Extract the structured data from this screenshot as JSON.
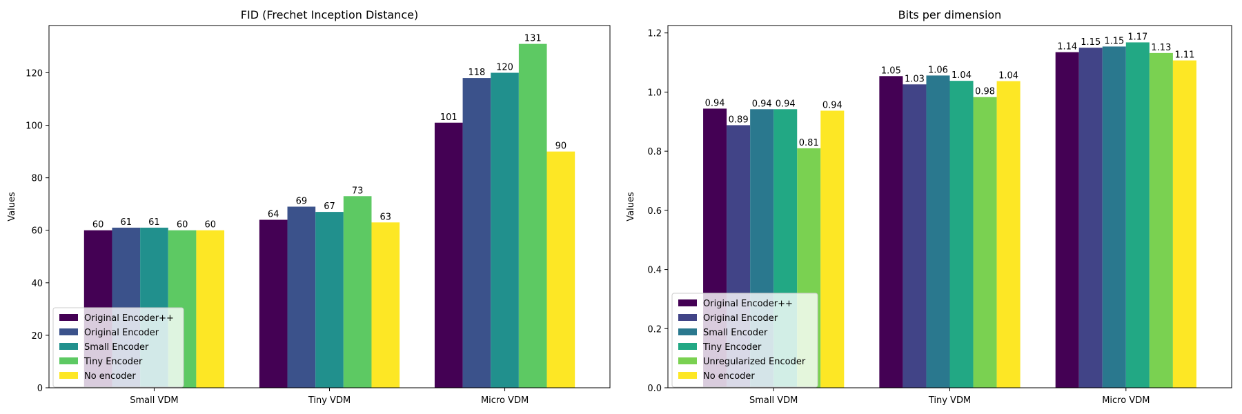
{
  "chart_data": [
    {
      "type": "bar",
      "title": "FID (Frechet Inception Distance)",
      "xlabel": "",
      "ylabel": "Values",
      "categories": [
        "Small VDM",
        "Tiny VDM",
        "Micro VDM"
      ],
      "ylim": [
        0,
        138
      ],
      "yticks": [
        0,
        20,
        40,
        60,
        80,
        100,
        120
      ],
      "grid": false,
      "legend_position": "lower-left",
      "series": [
        {
          "name": "Original Encoder++",
          "color": "#440154",
          "values": [
            60,
            64,
            101
          ]
        },
        {
          "name": "Original Encoder",
          "color": "#3b528b",
          "values": [
            61,
            69,
            118
          ]
        },
        {
          "name": "Small Encoder",
          "color": "#21908d",
          "values": [
            61,
            67,
            120
          ]
        },
        {
          "name": "Tiny Encoder",
          "color": "#5dc963",
          "values": [
            60,
            73,
            131
          ]
        },
        {
          "name": "No encoder",
          "color": "#fde725",
          "values": [
            60,
            63,
            90
          ]
        }
      ],
      "value_labels": [
        [
          "60",
          "64",
          "101"
        ],
        [
          "61",
          "69",
          "118"
        ],
        [
          "61",
          "67",
          "120"
        ],
        [
          "60",
          "73",
          "131"
        ],
        [
          "60",
          "63",
          "90"
        ]
      ]
    },
    {
      "type": "bar",
      "title": "Bits per dimension",
      "xlabel": "",
      "ylabel": "Values",
      "categories": [
        "Small VDM",
        "Tiny VDM",
        "Micro VDM"
      ],
      "ylim": [
        0,
        1.225
      ],
      "yticks": [
        0.0,
        0.2,
        0.4,
        0.6,
        0.8,
        1.0,
        1.2
      ],
      "grid": false,
      "legend_position": "lower-left",
      "series": [
        {
          "name": "Original Encoder++",
          "color": "#440154",
          "values": [
            0.944,
            1.054,
            1.135
          ]
        },
        {
          "name": "Original Encoder",
          "color": "#414487",
          "values": [
            0.888,
            1.026,
            1.15
          ]
        },
        {
          "name": "Small Encoder",
          "color": "#2a788e",
          "values": [
            0.942,
            1.056,
            1.154
          ]
        },
        {
          "name": "Tiny Encoder",
          "color": "#22a884",
          "values": [
            0.942,
            1.038,
            1.168
          ]
        },
        {
          "name": "Unregularized Encoder",
          "color": "#7ad151",
          "values": [
            0.81,
            0.983,
            1.132
          ]
        },
        {
          "name": "No encoder",
          "color": "#fde725",
          "values": [
            0.937,
            1.037,
            1.107
          ]
        }
      ],
      "value_labels": [
        [
          "0.94",
          "1.05",
          "1.14"
        ],
        [
          "0.89",
          "1.03",
          "1.15"
        ],
        [
          "0.94",
          "1.06",
          "1.15"
        ],
        [
          "0.94",
          "1.04",
          "1.17"
        ],
        [
          "0.81",
          "0.98",
          "1.13"
        ],
        [
          "0.94",
          "1.04",
          "1.11"
        ]
      ]
    }
  ]
}
